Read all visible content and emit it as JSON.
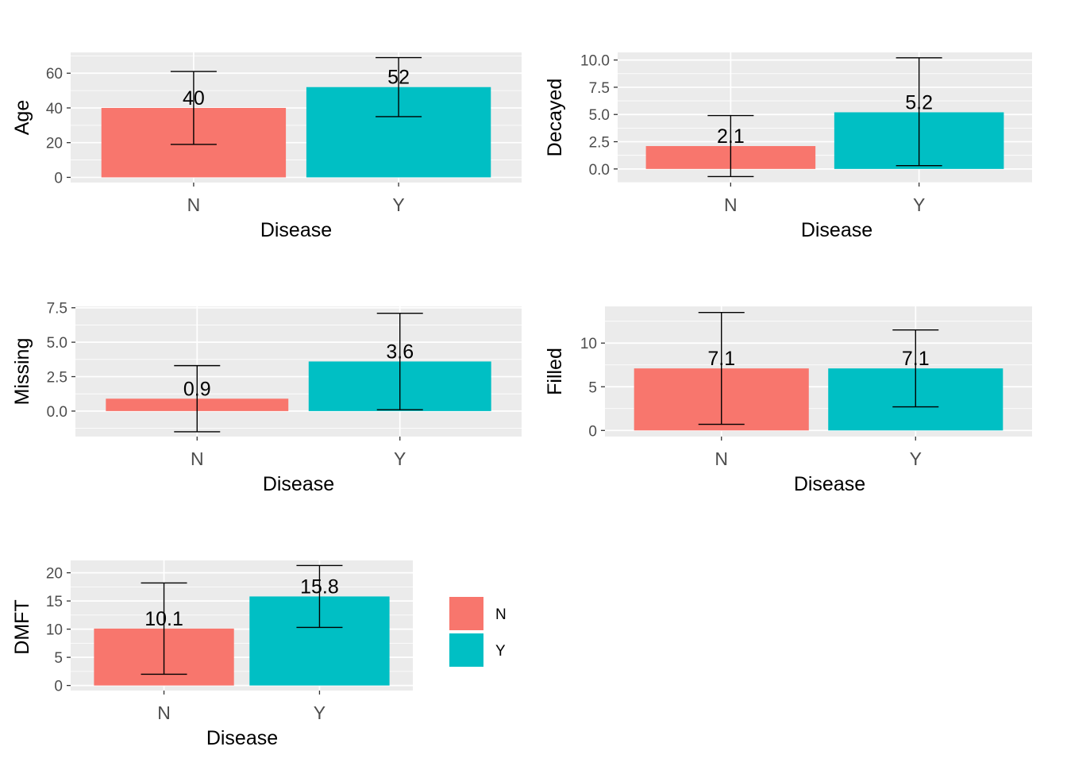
{
  "colors": {
    "N": "#F8766D",
    "Y": "#00BFC4"
  },
  "legend": {
    "items": [
      {
        "label": "N",
        "color": "#F8766D"
      },
      {
        "label": "Y",
        "color": "#00BFC4"
      }
    ]
  },
  "chart_data": [
    {
      "type": "bar",
      "title": "",
      "xlabel": "Disease",
      "ylabel": "Age",
      "categories": [
        "N",
        "Y"
      ],
      "values": [
        40,
        52
      ],
      "error_low": [
        19,
        35
      ],
      "error_high": [
        61,
        69
      ],
      "labels": [
        "40",
        "52"
      ],
      "yticks": [
        0,
        20,
        40,
        60
      ],
      "ytick_labels": [
        "0",
        "20",
        "40",
        "60"
      ],
      "ylim": [
        -3,
        72
      ],
      "grid": true
    },
    {
      "type": "bar",
      "title": "",
      "xlabel": "Disease",
      "ylabel": "Decayed",
      "categories": [
        "N",
        "Y"
      ],
      "values": [
        2.1,
        5.2
      ],
      "error_low": [
        -0.7,
        0.3
      ],
      "error_high": [
        4.9,
        10.2
      ],
      "labels": [
        "2.1",
        "5.2"
      ],
      "yticks": [
        0,
        2.5,
        5,
        7.5,
        10
      ],
      "ytick_labels": [
        "0.0",
        "2.5",
        "5.0",
        "7.5",
        "10.0"
      ],
      "ylim": [
        -1.25,
        10.7
      ],
      "grid": true
    },
    {
      "type": "bar",
      "title": "",
      "xlabel": "Disease",
      "ylabel": "Missing",
      "categories": [
        "N",
        "Y"
      ],
      "values": [
        0.9,
        3.6
      ],
      "error_low": [
        -1.5,
        0.1
      ],
      "error_high": [
        3.3,
        7.1
      ],
      "labels": [
        "0.9",
        "3.6"
      ],
      "yticks": [
        0,
        2.5,
        5,
        7.5
      ],
      "ytick_labels": [
        "0.0",
        "2.5",
        "5.0",
        "7.5"
      ],
      "ylim": [
        -1.85,
        7.6
      ],
      "grid": true
    },
    {
      "type": "bar",
      "title": "",
      "xlabel": "Disease",
      "ylabel": "Filled",
      "categories": [
        "N",
        "Y"
      ],
      "values": [
        7.1,
        7.1
      ],
      "error_low": [
        0.7,
        2.7
      ],
      "error_high": [
        13.5,
        11.5
      ],
      "labels": [
        "7.1",
        "7.1"
      ],
      "yticks": [
        0,
        5,
        10
      ],
      "ytick_labels": [
        "0",
        "5",
        "10"
      ],
      "ylim": [
        -0.7,
        14.2
      ],
      "grid": true
    },
    {
      "type": "bar",
      "title": "",
      "xlabel": "Disease",
      "ylabel": "DMFT",
      "categories": [
        "N",
        "Y"
      ],
      "values": [
        10.1,
        15.8
      ],
      "error_low": [
        2,
        10.3
      ],
      "error_high": [
        18.2,
        21.3
      ],
      "labels": [
        "10.1",
        "15.8"
      ],
      "yticks": [
        0,
        5,
        10,
        15,
        20
      ],
      "ytick_labels": [
        "0",
        "5",
        "10",
        "15",
        "20"
      ],
      "ylim": [
        -0.9,
        22.2
      ],
      "grid": true
    }
  ]
}
